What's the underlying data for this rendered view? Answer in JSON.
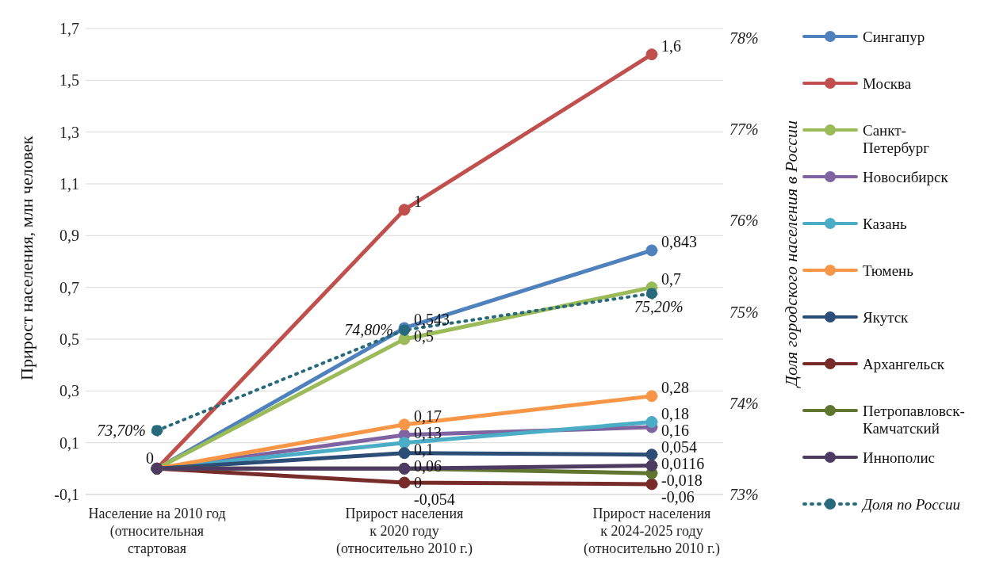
{
  "chart_data": {
    "type": "line",
    "ylabel": "Прирост населения, млн человек",
    "y2label": "Доля городского населения в России",
    "categories": [
      "Население на 2010 год (относительная стартовая",
      "Прирост населения к 2020 году (относительно 2010 г.)",
      "Прирост населения к 2024-2025 году (относительно 2010 г.)"
    ],
    "series": [
      {
        "name": "Сингапур",
        "color": "#4f81bd",
        "values": [
          0,
          0.543,
          0.843
        ],
        "value_labels": [
          null,
          "0,543",
          "0,843"
        ]
      },
      {
        "name": "Москва",
        "color": "#c0504d",
        "values": [
          0,
          1,
          1.6
        ],
        "value_labels": [
          null,
          "1",
          "1,6"
        ]
      },
      {
        "name": "Санкт-Петербург",
        "color": "#9bbb59",
        "values": [
          0,
          0.5,
          0.7
        ],
        "value_labels": [
          null,
          "0,5",
          "0,7"
        ]
      },
      {
        "name": "Новосибирск",
        "color": "#8064a2",
        "values": [
          0,
          0.13,
          0.16
        ],
        "value_labels": [
          null,
          "0,13",
          "0,16"
        ]
      },
      {
        "name": "Казань",
        "color": "#4bacc6",
        "values": [
          0,
          0.1,
          0.18
        ],
        "value_labels": [
          null,
          "0,1",
          "0,18"
        ]
      },
      {
        "name": "Тюмень",
        "color": "#f79646",
        "values": [
          0,
          0.17,
          0.28
        ],
        "value_labels": [
          null,
          "0,17",
          "0,28"
        ]
      },
      {
        "name": "Якутск",
        "color": "#2c4d75",
        "values": [
          0,
          0.06,
          0.054
        ],
        "value_labels": [
          null,
          "0,06",
          "0,054"
        ]
      },
      {
        "name": "Архангельск",
        "color": "#772c2a",
        "values": [
          0,
          -0.054,
          -0.06
        ],
        "value_labels": [
          null,
          "-0,054",
          "-0,06"
        ]
      },
      {
        "name": "Петропавловск-Камчатский",
        "color": "#5f7530",
        "values": [
          0,
          0,
          -0.018
        ],
        "value_labels": [
          null,
          "0",
          "-0,018"
        ]
      },
      {
        "name": "Иннополис",
        "color": "#4d3b62",
        "values": [
          0,
          0,
          0.0116
        ],
        "value_labels": [
          "0",
          null,
          "0,0116"
        ]
      },
      {
        "name": "Доля по России",
        "color": "#276a7c",
        "values": [
          73.7,
          74.8,
          75.2
        ],
        "axis": "y2",
        "type": "line",
        "line_style": "dotted",
        "value_labels": [
          "73,70%",
          "74,80%",
          "75,20%"
        ]
      }
    ],
    "ylim": [
      -0.1,
      1.7
    ],
    "yticks": [
      {
        "value": -0.1,
        "label": "-0,1"
      },
      {
        "value": 0.1,
        "label": "0,1"
      },
      {
        "value": 0.3,
        "label": "0,3"
      },
      {
        "value": 0.5,
        "label": "0,5"
      },
      {
        "value": 0.7,
        "label": "0,7"
      },
      {
        "value": 0.9,
        "label": "0,9"
      },
      {
        "value": 1.1,
        "label": "1,1"
      },
      {
        "value": 1.3,
        "label": "1,3"
      },
      {
        "value": 1.5,
        "label": "1,5"
      },
      {
        "value": 1.7,
        "label": "1,7"
      }
    ],
    "y2lim": [
      73,
      78.1
    ],
    "y2ticks": [
      {
        "value": 73,
        "label": "73%"
      },
      {
        "value": 74,
        "label": "74%"
      },
      {
        "value": 75,
        "label": "75%"
      },
      {
        "value": 76,
        "label": "76%"
      },
      {
        "value": 77,
        "label": "77%"
      },
      {
        "value": 78,
        "label": "78%"
      }
    ],
    "grid": "y",
    "legend": "right",
    "marker": "circle",
    "line_style": "solid"
  }
}
